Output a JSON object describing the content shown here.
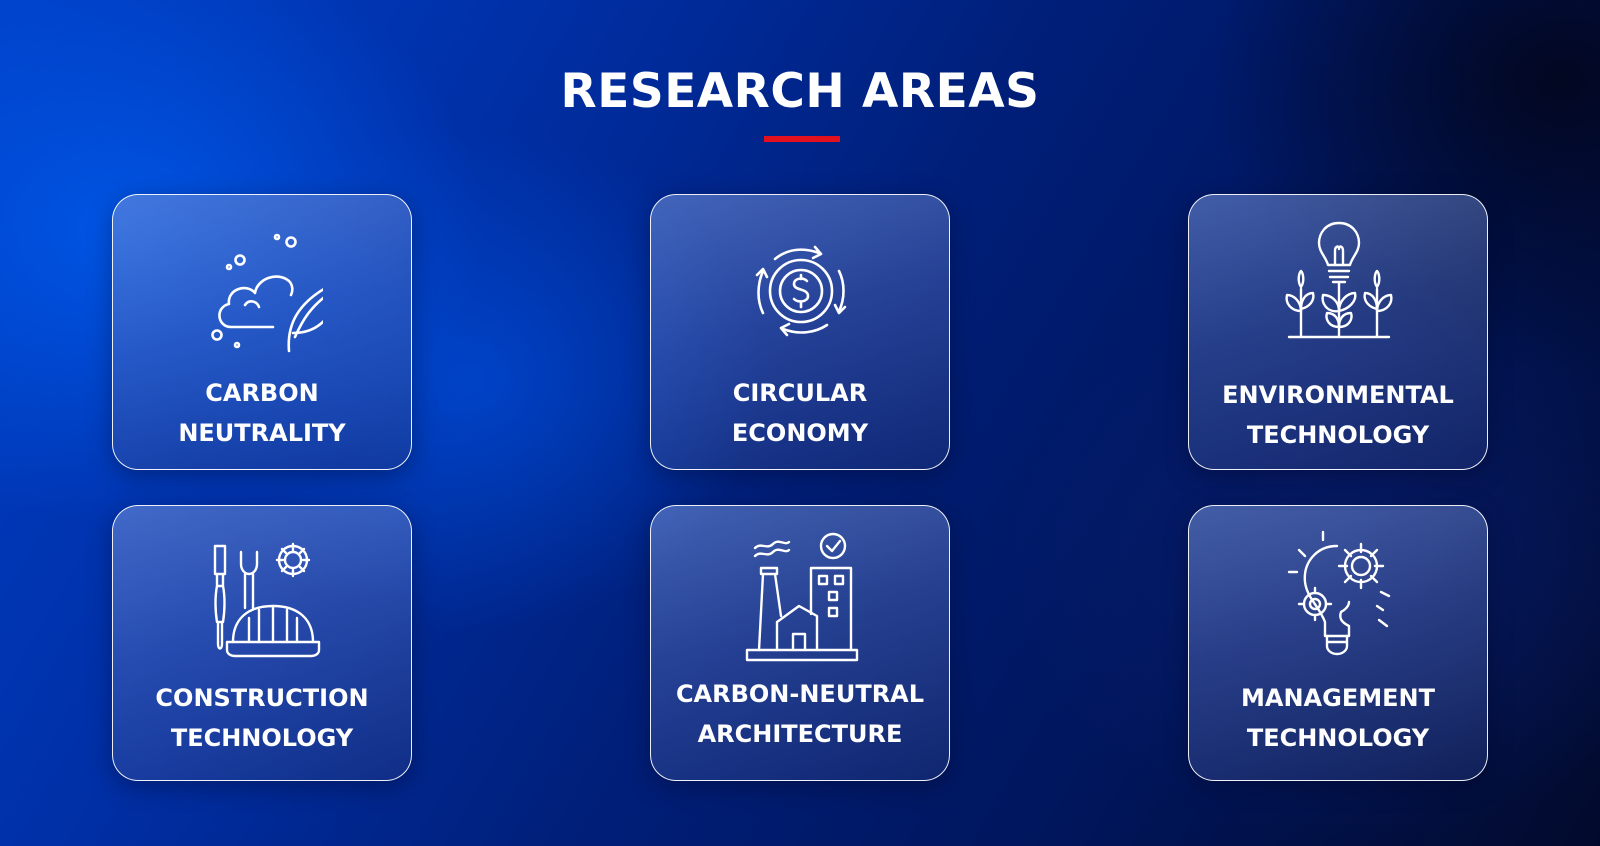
{
  "page": {
    "title": "RESEARCH AREAS",
    "accent_color": "#e3101e"
  },
  "research_areas": [
    {
      "icon": "cloud-leaf-icon",
      "label_line1": "CARBON",
      "label_line2": "NEUTRALITY"
    },
    {
      "icon": "circular-dollar-icon",
      "label_line1": "CIRCULAR",
      "label_line2": "ECONOMY"
    },
    {
      "icon": "lightbulb-plants-icon",
      "label_line1": "ENVIRONMENTAL",
      "label_line2": "TECHNOLOGY"
    },
    {
      "icon": "tools-helmet-gear-icon",
      "label_line1": "CONSTRUCTION",
      "label_line2": "TECHNOLOGY"
    },
    {
      "icon": "factory-building-icon",
      "label_line1": "CARBON-NEUTRAL",
      "label_line2": "ARCHITECTURE"
    },
    {
      "icon": "head-gears-icon",
      "label_line1": "MANAGEMENT",
      "label_line2": "TECHNOLOGY"
    }
  ]
}
